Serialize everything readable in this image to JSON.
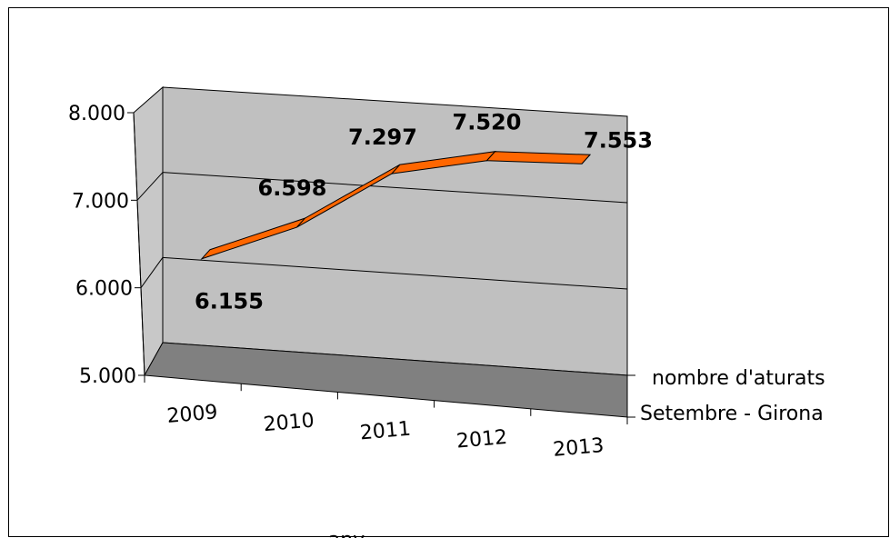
{
  "chart_data": {
    "type": "line",
    "view": "3d",
    "title": "",
    "xlabel": "any",
    "ylabel": "",
    "categories": [
      "2009",
      "2010",
      "2011",
      "2012",
      "2013"
    ],
    "series": [
      {
        "name": "nombre d'aturats Setembre - Girona",
        "name_lines": [
          "nombre d'aturats",
          "Setembre - Girona"
        ],
        "values": [
          6155,
          6598,
          7297,
          7520,
          7553
        ],
        "labels": [
          "6.155",
          "6.598",
          "7.297",
          "7.520",
          "7.553"
        ],
        "color": "#ff6600"
      }
    ],
    "ylim": [
      5000,
      8000
    ],
    "yticks": [
      5000,
      6000,
      7000,
      8000
    ],
    "ytick_labels": [
      "5.000",
      "6.000",
      "7.000",
      "8.000"
    ],
    "grid": true,
    "legend": "none",
    "colors": {
      "back_wall": "#c0c0c0",
      "side_wall": "#c8c8c8",
      "floor": "#808080",
      "ribbon": "#ff6600"
    }
  }
}
